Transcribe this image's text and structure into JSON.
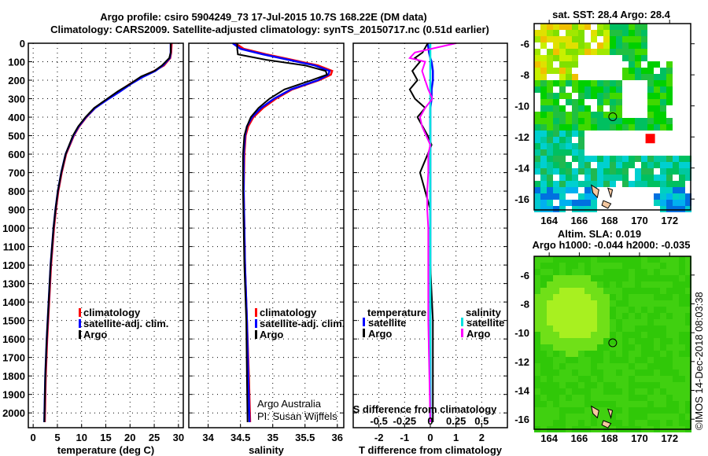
{
  "chart_data": {
    "type": "line",
    "title_line1": "Argo profile: csiro 5904249_73 17-Jul-2015 10.7S 168.22E (DM data)",
    "title_line2": "Climatology: CARS2009. Satellite-adjusted climatology: synTS_20150717.nc (0.51d earlier)",
    "depth_ticks": [
      0,
      100,
      200,
      300,
      400,
      500,
      600,
      700,
      800,
      900,
      1000,
      1100,
      1200,
      1300,
      1400,
      1500,
      1600,
      1700,
      1800,
      1900,
      2000
    ],
    "ylim": [
      0,
      2080
    ],
    "panels": [
      {
        "name": "temperature",
        "xlabel": "temperature (deg C)",
        "xlim": [
          -1,
          31
        ],
        "xticks": [
          0,
          5,
          10,
          15,
          20,
          25,
          30
        ],
        "legend": [
          "climatology",
          "satellite-adj. clim.",
          "Argo"
        ],
        "depth": [
          0,
          50,
          80,
          120,
          150,
          180,
          220,
          260,
          300,
          350,
          400,
          450,
          500,
          600,
          700,
          800,
          900,
          1000,
          1200,
          1400,
          1600,
          1800,
          2050
        ],
        "series": [
          {
            "name": "climatology",
            "color": "#ff0000",
            "values": [
              28.6,
              28.5,
              28.3,
              27.0,
              25.0,
              22.5,
              20.0,
              17.8,
              15.5,
              12.8,
              11.0,
              9.5,
              8.4,
              6.8,
              5.9,
              5.2,
              4.7,
              4.3,
              3.7,
              3.3,
              2.9,
              2.6,
              2.4
            ]
          },
          {
            "name": "satellite-adj. clim.",
            "color": "#0000ff",
            "values": [
              28.4,
              28.4,
              28.2,
              26.8,
              25.2,
              22.8,
              20.2,
              18.0,
              15.6,
              12.8,
              10.9,
              9.4,
              8.3,
              6.7,
              5.8,
              5.1,
              4.6,
              4.2,
              3.6,
              3.2,
              2.8,
              2.5,
              2.3
            ]
          },
          {
            "name": "Argo",
            "color": "#000000",
            "values": [
              28.4,
              28.4,
              28.1,
              26.6,
              25.0,
              22.3,
              20.0,
              17.5,
              15.3,
              12.6,
              10.8,
              9.3,
              8.2,
              6.7,
              5.8,
              5.1,
              4.6,
              4.2,
              3.6,
              3.2,
              2.8,
              2.5,
              2.3
            ]
          }
        ]
      },
      {
        "name": "salinity",
        "xlabel": "salinity",
        "xlim": [
          33.7,
          36.1
        ],
        "xticks": [
          34,
          34.5,
          35,
          35.5,
          36
        ],
        "legend": [
          "climatology",
          "satellite-adj. clim.",
          "Argo"
        ],
        "credit": [
          "Argo Australia",
          "PI: Susan Wijffels"
        ],
        "depth": [
          0,
          30,
          60,
          90,
          120,
          150,
          170,
          200,
          250,
          300,
          350,
          400,
          450,
          500,
          600,
          800,
          1000,
          1200,
          1500,
          1800,
          2050
        ],
        "series": [
          {
            "name": "climatology",
            "color": "#ff0000",
            "values": [
              34.42,
              34.55,
              34.9,
              35.3,
              35.7,
              35.92,
              35.9,
              35.72,
              35.3,
              35.05,
              34.85,
              34.7,
              34.62,
              34.58,
              34.56,
              34.55,
              34.56,
              34.57,
              34.6,
              34.63,
              34.65
            ]
          },
          {
            "name": "satellite-adj. clim.",
            "color": "#0000ff",
            "values": [
              34.38,
              34.5,
              34.85,
              35.25,
              35.65,
              35.88,
              35.86,
              35.7,
              35.28,
              35.02,
              34.82,
              34.68,
              34.6,
              34.57,
              34.55,
              34.55,
              34.56,
              34.57,
              34.6,
              34.62,
              34.64
            ]
          },
          {
            "name": "Argo",
            "color": "#000000",
            "values": [
              34.45,
              34.45,
              34.46,
              34.9,
              35.5,
              35.82,
              35.84,
              35.6,
              35.18,
              34.95,
              34.78,
              34.66,
              34.6,
              34.56,
              34.54,
              34.54,
              34.55,
              34.56,
              34.59,
              34.6,
              34.61
            ]
          }
        ]
      },
      {
        "name": "difference",
        "xlabel": "T difference from climatology",
        "x2label": "S difference from climatology",
        "xlim": [
          -3,
          3
        ],
        "xticks": [
          -2,
          -1,
          0,
          1,
          2
        ],
        "x2ticks": [
          -0.5,
          -0.25,
          0,
          0.25,
          0.5
        ],
        "legend_temperature": {
          "title": "temperature",
          "items": [
            "satellite",
            "Argo"
          ]
        },
        "legend_salinity": {
          "title": "salinity",
          "items": [
            "satellite",
            "Argo"
          ]
        },
        "depth": [
          0,
          50,
          80,
          100,
          150,
          200,
          250,
          300,
          350,
          400,
          450,
          500,
          550,
          600,
          700,
          800,
          900,
          1000,
          1200,
          1500,
          2050
        ],
        "series": [
          {
            "name": "temperature satellite",
            "color": "#0000ff",
            "values": [
              -0.1,
              -0.05,
              0.0,
              0.05,
              0.1,
              0.1,
              0.05,
              0.05,
              0.0,
              0.0,
              0.0,
              0.0,
              0.0,
              0.0,
              0.0,
              0.0,
              0.0,
              0.0,
              0.0,
              0.0,
              0.0
            ]
          },
          {
            "name": "temperature Argo",
            "color": "#000000",
            "values": [
              -0.1,
              -0.3,
              -0.6,
              -0.4,
              -0.7,
              -0.5,
              -0.8,
              -0.6,
              -0.2,
              -0.5,
              -0.3,
              -0.1,
              0.05,
              -0.1,
              -0.4,
              -0.2,
              0.0,
              0.0,
              0.0,
              0.1,
              0.1
            ]
          },
          {
            "name": "salinity satellite",
            "color": "#00e0e0",
            "values": [
              0.0,
              0.0,
              0.0,
              0.0,
              0.0,
              0.0,
              0.0,
              0.0,
              0.0,
              0.0,
              0.0,
              0.0,
              0.0,
              0.0,
              0.0,
              0.0,
              0.0,
              0.0,
              0.0,
              0.0,
              0.0
            ]
          },
          {
            "name": "salinity Argo",
            "color": "#ff00ff",
            "values": [
              0.25,
              -0.15,
              -0.2,
              -0.05,
              -0.08,
              -0.05,
              -0.02,
              0.02,
              -0.05,
              -0.1,
              -0.08,
              -0.04,
              0.0,
              -0.02,
              -0.02,
              -0.03,
              -0.03,
              -0.02,
              -0.02,
              -0.02,
              0.0
            ]
          }
        ]
      }
    ],
    "maps": [
      {
        "title": "sat. SST: 28.4 Argo: 28.4",
        "lon_ticks": [
          164,
          166,
          168,
          170,
          172
        ],
        "lat_ticks": [
          -6,
          -8,
          -10,
          -12,
          -14,
          -16
        ],
        "lon_range": [
          163,
          173.4
        ],
        "lat_range": [
          -4.7,
          -16.7
        ],
        "float_lon": 168.22,
        "float_lat": -10.7
      },
      {
        "title_line1": "Altim. SLA: 0.019",
        "title_line2": "Argo h1000: -0.044 h2000: -0.035",
        "lon_ticks": [
          164,
          166,
          168,
          170,
          172
        ],
        "lat_ticks": [
          -6,
          -8,
          -10,
          -12,
          -14,
          -16
        ],
        "lon_range": [
          163,
          173.4
        ],
        "lat_range": [
          -4.7,
          -16.7
        ],
        "float_lon": 168.22,
        "float_lat": -10.7
      }
    ],
    "watermark": "©IMOS 14-Dec-2018 08:03:38"
  }
}
